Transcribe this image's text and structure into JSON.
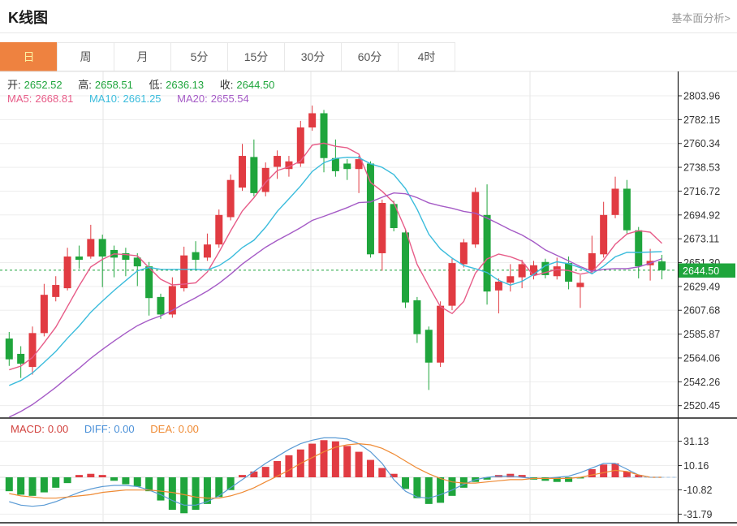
{
  "header": {
    "title": "K线图",
    "link": "基本面分析>"
  },
  "tabs": [
    {
      "key": "day",
      "label": "日",
      "selected": true
    },
    {
      "key": "week",
      "label": "周",
      "selected": false
    },
    {
      "key": "month",
      "label": "月",
      "selected": false
    },
    {
      "key": "5min",
      "label": "5分",
      "selected": false
    },
    {
      "key": "15min",
      "label": "15分",
      "selected": false
    },
    {
      "key": "30min",
      "label": "30分",
      "selected": false
    },
    {
      "key": "60min",
      "label": "60分",
      "selected": false
    },
    {
      "key": "4hour",
      "label": "4时",
      "selected": false
    }
  ],
  "ohlc": {
    "open_label": "开:",
    "open": "2652.52",
    "high_label": "高:",
    "high": "2658.51",
    "low_label": "低:",
    "low": "2636.13",
    "close_label": "收:",
    "close": "2644.50"
  },
  "ma_header": {
    "ma5_label": "MA5:",
    "ma5": "2668.81",
    "ma10_label": "MA10:",
    "ma10": "2661.25",
    "ma20_label": "MA20:",
    "ma20": "2655.54"
  },
  "macd_header": {
    "macd_label": "MACD:",
    "macd": "0.00",
    "diff_label": "DIFF:",
    "diff": "0.00",
    "dea_label": "DEA:",
    "dea": "0.00"
  },
  "colors": {
    "up": "#e13b42",
    "down": "#1fa53c",
    "ma5": "#e75c88",
    "ma10": "#3bbcdc",
    "ma20": "#a55bc6",
    "diff_line": "#5b9bd5",
    "dea_line": "#ef8a33",
    "grid": "#ededed",
    "vgrid": "#e5e5e5",
    "axis": "#333333",
    "dashed_price": "#1fa53c",
    "badge_bg": "#1fa53c",
    "badge_text": "#ffffff",
    "tab_selected_bg": "#ee8240",
    "tab_selected_text": "#fcf2a2"
  },
  "chart_data": {
    "type": "candlestick+macd",
    "title": "K线图 (日K)",
    "legend": [
      "MA5",
      "MA10",
      "MA20",
      "MACD",
      "DIFF",
      "DEA"
    ],
    "grid": true,
    "price_axis_ticks": [
      "2803.96",
      "2782.15",
      "2760.34",
      "2738.53",
      "2716.72",
      "2694.92",
      "2673.11",
      "2651.30",
      "2629.49",
      "2607.68",
      "2585.87",
      "2564.06",
      "2542.26",
      "2520.45"
    ],
    "macd_axis_ticks": [
      "31.13",
      "10.16",
      "-10.82",
      "-31.79"
    ],
    "last_price": 2644.5,
    "last_price_label": "2644.50",
    "candles_ohlc": [
      [
        2582,
        2588,
        2557,
        2563
      ],
      [
        2568,
        2575,
        2546,
        2559
      ],
      [
        2556,
        2593,
        2549,
        2587
      ],
      [
        2587,
        2632,
        2584,
        2622
      ],
      [
        2620,
        2639,
        2616,
        2631
      ],
      [
        2628,
        2665,
        2626,
        2657
      ],
      [
        2657,
        2667,
        2646,
        2654
      ],
      [
        2657,
        2686,
        2655,
        2673
      ],
      [
        2673,
        2677,
        2629,
        2657
      ],
      [
        2663,
        2667,
        2638,
        2656
      ],
      [
        2660,
        2665,
        2639,
        2654
      ],
      [
        2656,
        2660,
        2630,
        2648
      ],
      [
        2648,
        2652,
        2603,
        2619
      ],
      [
        2620,
        2623,
        2600,
        2604
      ],
      [
        2604,
        2638,
        2601,
        2630
      ],
      [
        2628,
        2666,
        2625,
        2658
      ],
      [
        2661,
        2671,
        2645,
        2654
      ],
      [
        2656,
        2678,
        2653,
        2668
      ],
      [
        2668,
        2700,
        2665,
        2695
      ],
      [
        2693,
        2732,
        2690,
        2727
      ],
      [
        2720,
        2760,
        2717,
        2749
      ],
      [
        2748,
        2764,
        2712,
        2715
      ],
      [
        2716,
        2743,
        2712,
        2738
      ],
      [
        2739,
        2754,
        2728,
        2749
      ],
      [
        2737,
        2749,
        2730,
        2744
      ],
      [
        2742,
        2781,
        2739,
        2775
      ],
      [
        2775,
        2795,
        2772,
        2788
      ],
      [
        2788,
        2791,
        2734,
        2747
      ],
      [
        2747,
        2764,
        2730,
        2735
      ],
      [
        2742,
        2746,
        2727,
        2737
      ],
      [
        2737,
        2749,
        2715,
        2746
      ],
      [
        2742,
        2744,
        2656,
        2659
      ],
      [
        2660,
        2709,
        2644,
        2706
      ],
      [
        2705,
        2708,
        2680,
        2683
      ],
      [
        2679,
        2682,
        2610,
        2615
      ],
      [
        2617,
        2620,
        2578,
        2586
      ],
      [
        2590,
        2593,
        2535,
        2560
      ],
      [
        2560,
        2616,
        2556,
        2612
      ],
      [
        2612,
        2655,
        2608,
        2651
      ],
      [
        2650,
        2673,
        2647,
        2670
      ],
      [
        2668,
        2720,
        2665,
        2716
      ],
      [
        2695,
        2723,
        2613,
        2625
      ],
      [
        2626,
        2637,
        2605,
        2634
      ],
      [
        2633,
        2650,
        2625,
        2639
      ],
      [
        2638,
        2654,
        2628,
        2650
      ],
      [
        2640,
        2653,
        2636,
        2649
      ],
      [
        2652,
        2655,
        2637,
        2640
      ],
      [
        2639,
        2656,
        2636,
        2648
      ],
      [
        2651,
        2657,
        2627,
        2634
      ],
      [
        2629,
        2640,
        2610,
        2633
      ],
      [
        2644,
        2676,
        2641,
        2660
      ],
      [
        2659,
        2707,
        2656,
        2695
      ],
      [
        2695,
        2730,
        2692,
        2719
      ],
      [
        2719,
        2727,
        2678,
        2681
      ],
      [
        2681,
        2684,
        2637,
        2648
      ],
      [
        2649,
        2664,
        2635,
        2653
      ],
      [
        2652.52,
        2658.51,
        2636.13,
        2644.5
      ]
    ],
    "ma_periods": [
      5,
      10,
      20
    ],
    "ma_history_estimate": [
      2455,
      2461,
      2467,
      2472,
      2478,
      2484,
      2490,
      2496,
      2502,
      2507,
      2513,
      2519,
      2525,
      2531,
      2536,
      2542,
      2548,
      2554,
      2560
    ],
    "macd": {
      "histogram": [
        -12,
        -15,
        -16,
        -13,
        -9,
        -5,
        2,
        3,
        2,
        -3,
        -6,
        -8,
        -12,
        -20,
        -28,
        -31,
        -28,
        -23,
        -17,
        -11,
        2,
        5,
        9,
        14,
        19,
        24,
        29,
        32,
        31,
        27,
        22,
        15,
        8,
        3,
        -10,
        -18,
        -23,
        -22,
        -16,
        -9,
        -4,
        -2,
        2,
        3,
        2,
        -2,
        -3,
        -4,
        -4,
        -1,
        7,
        11,
        12,
        5,
        2,
        0,
        0
      ],
      "diff": [
        -21,
        -24,
        -25,
        -24,
        -21,
        -17,
        -13,
        -10,
        -8,
        -7,
        -7,
        -8,
        -11,
        -15,
        -20,
        -24,
        -24,
        -21,
        -16,
        -9,
        -2,
        5,
        12,
        18,
        24,
        29,
        32,
        34,
        34,
        33,
        29,
        22,
        12,
        -2,
        -12,
        -17,
        -18,
        -15,
        -11,
        -6,
        -2,
        0,
        1,
        1,
        0,
        -1,
        -1,
        0,
        1,
        4,
        8,
        12,
        12,
        7,
        2,
        0,
        0
      ],
      "dea": [
        -14,
        -16,
        -17,
        -18,
        -18,
        -17,
        -16,
        -15,
        -13,
        -12,
        -11,
        -11,
        -11,
        -12,
        -13,
        -15,
        -17,
        -18,
        -18,
        -16,
        -13,
        -9,
        -4,
        1,
        6,
        12,
        17,
        22,
        26,
        28,
        29,
        28,
        25,
        20,
        14,
        8,
        3,
        -1,
        -4,
        -5,
        -5,
        -4,
        -3,
        -2,
        -2,
        -1,
        -1,
        -1,
        -1,
        0,
        2,
        4,
        6,
        5,
        2,
        0,
        0
      ]
    }
  }
}
